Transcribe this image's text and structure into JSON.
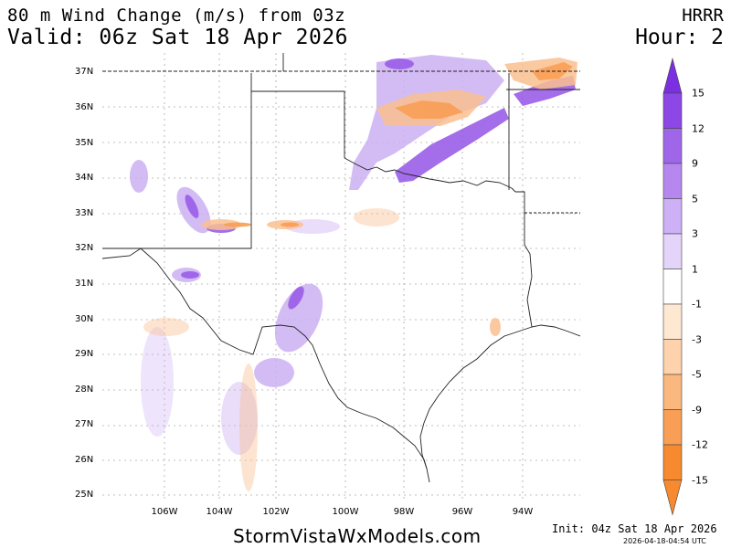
{
  "header": {
    "title": "80 m Wind Change (m/s) from 03z",
    "valid": "Valid: 06z Sat 18 Apr 2026",
    "model": "HRRR",
    "hour": "Hour: 2"
  },
  "map": {
    "lat_labels": [
      "37N",
      "36N",
      "35N",
      "34N",
      "33N",
      "32N",
      "31N",
      "30N",
      "29N",
      "28N",
      "27N",
      "26N",
      "25N"
    ],
    "lon_labels": [
      "106W",
      "104W",
      "102W",
      "100W",
      "98W",
      "96W",
      "94W"
    ]
  },
  "colorbar": {
    "labels": [
      "15",
      "12",
      "9",
      "5",
      "3",
      "1",
      "-1",
      "-3",
      "-5",
      "-9",
      "-12",
      "-15"
    ],
    "colors": [
      "#7a2fe0",
      "#8c47e6",
      "#a066ea",
      "#b688ef",
      "#cdb0f5",
      "#e4d4fa",
      "#ffffff",
      "#fee8d2",
      "#fdd2ac",
      "#fbb87e",
      "#f99e55",
      "#f78a2e"
    ]
  },
  "footer": {
    "site": "StormVistaWxModels.com",
    "init": "Init: 04z Sat 18 Apr 2026",
    "stamp": "2026-04-18-04:54 UTC"
  }
}
